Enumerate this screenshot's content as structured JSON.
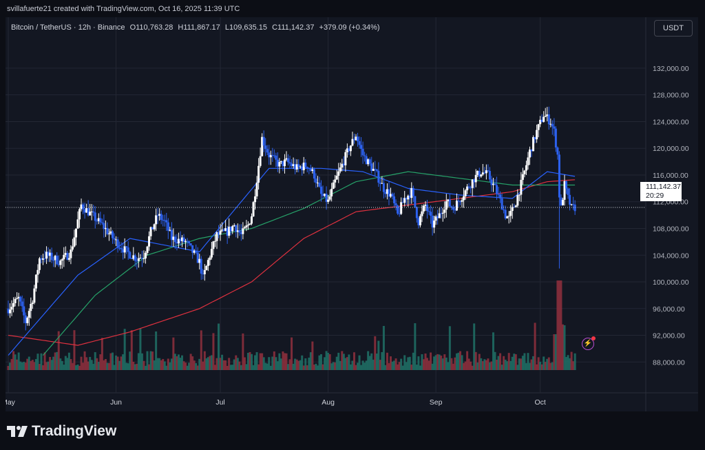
{
  "credit": "svillafuerte21 created with TradingView.com, Oct 16, 2025 11:39 UTC",
  "header": {
    "symbol": "Bitcoin / TetherUS · 12h · Binance",
    "open": "O110,763.28",
    "high": "H111,867.17",
    "low": "L109,635.15",
    "close": "C111,142.37",
    "change": "+379.09 (+0.34%)"
  },
  "currency_label": "USDT",
  "price_tag": {
    "price": "111,142.37",
    "countdown": "20:29"
  },
  "footer": {
    "brand": "TradingView"
  },
  "icons": {
    "logo": "tradingview-logo-icon",
    "alert": "lightning-alert-icon"
  },
  "colors": {
    "background": "#131722",
    "grid": "#232734",
    "candle": "#ffffff",
    "candle_alt": "#2d62f0",
    "ma_fast": "#2962ff",
    "ma_mid": "#26a269",
    "ma_slow": "#e0313f",
    "volume_up": "#1f6b63",
    "volume_down": "#8a2f3c"
  },
  "chart_data": {
    "type": "candlestick",
    "title": "Bitcoin / TetherUS · 12h · Binance",
    "x_tick_labels": [
      "May",
      "Jun",
      "Jul",
      "Aug",
      "Sep",
      "Oct"
    ],
    "x_ticks_days": [
      0,
      31,
      61,
      92,
      123,
      153
    ],
    "y_tick_labels": [
      "132,000.00",
      "128,000.00",
      "124,000.00",
      "120,000.00",
      "116,000.00",
      "112,000.00",
      "108,000.00",
      "104,000.00",
      "100,000.00",
      "96,000.00",
      "92,000.00",
      "88,000.00"
    ],
    "y_ticks": [
      132000,
      128000,
      124000,
      120000,
      116000,
      112000,
      108000,
      104000,
      100000,
      96000,
      92000,
      88000
    ],
    "ylim": [
      87000,
      135500
    ],
    "last_price": 111142.37,
    "price_anchors": [
      [
        0,
        96000
      ],
      [
        3,
        97500
      ],
      [
        5,
        94000
      ],
      [
        7,
        97500
      ],
      [
        9,
        103500
      ],
      [
        11,
        104000
      ],
      [
        15,
        103000
      ],
      [
        18,
        104500
      ],
      [
        21,
        111500
      ],
      [
        24,
        110000
      ],
      [
        27,
        108500
      ],
      [
        31,
        106000
      ],
      [
        34,
        104500
      ],
      [
        37,
        103500
      ],
      [
        39,
        104000
      ],
      [
        41,
        107500
      ],
      [
        43,
        110000
      ],
      [
        45,
        109000
      ],
      [
        47,
        106500
      ],
      [
        51,
        106000
      ],
      [
        53,
        104500
      ],
      [
        55,
        103000
      ],
      [
        56,
        100500
      ],
      [
        58,
        104000
      ],
      [
        60,
        107000
      ],
      [
        63,
        107500
      ],
      [
        65,
        108500
      ],
      [
        67,
        107000
      ],
      [
        69,
        108500
      ],
      [
        70,
        110000
      ],
      [
        71,
        113500
      ],
      [
        72,
        117500
      ],
      [
        73,
        121500
      ],
      [
        75,
        119000
      ],
      [
        78,
        117500
      ],
      [
        80,
        118000
      ],
      [
        83,
        117000
      ],
      [
        86,
        117500
      ],
      [
        88,
        116000
      ],
      [
        90,
        113000
      ],
      [
        92,
        112000
      ],
      [
        94,
        115000
      ],
      [
        96,
        117500
      ],
      [
        98,
        120000
      ],
      [
        100,
        122000
      ],
      [
        102,
        119000
      ],
      [
        104,
        117500
      ],
      [
        106,
        116000
      ],
      [
        108,
        114000
      ],
      [
        110,
        113000
      ],
      [
        112,
        110000
      ],
      [
        114,
        112500
      ],
      [
        116,
        113500
      ],
      [
        118,
        109000
      ],
      [
        120,
        111500
      ],
      [
        122,
        108500
      ],
      [
        124,
        110000
      ],
      [
        126,
        112000
      ],
      [
        128,
        111000
      ],
      [
        130,
        112500
      ],
      [
        132,
        114000
      ],
      [
        134,
        115500
      ],
      [
        136,
        116500
      ],
      [
        138,
        116000
      ],
      [
        140,
        114000
      ],
      [
        142,
        111500
      ],
      [
        143,
        110000
      ],
      [
        144,
        109500
      ],
      [
        146,
        112000
      ],
      [
        148,
        115500
      ],
      [
        150,
        119500
      ],
      [
        152,
        122500
      ],
      [
        154,
        125000
      ],
      [
        156,
        124000
      ],
      [
        157,
        122500
      ],
      [
        158,
        119000
      ],
      [
        158.5,
        113000
      ],
      [
        159,
        111000
      ],
      [
        160,
        114500
      ],
      [
        161,
        112500
      ],
      [
        162,
        111000
      ],
      [
        163,
        111142
      ]
    ],
    "crash_wick": {
      "day": 158.5,
      "low": 102000
    },
    "peak_wick": {
      "day": 155,
      "high": 126200
    },
    "ma_fast_anchors": [
      [
        0,
        89000
      ],
      [
        20,
        101000
      ],
      [
        35,
        106500
      ],
      [
        55,
        104500
      ],
      [
        75,
        117000
      ],
      [
        90,
        117000
      ],
      [
        102,
        116500
      ],
      [
        115,
        114000
      ],
      [
        130,
        113000
      ],
      [
        145,
        112500
      ],
      [
        155,
        116500
      ],
      [
        163,
        115800
      ]
    ],
    "ma_mid_anchors": [
      [
        10,
        89000
      ],
      [
        25,
        98000
      ],
      [
        40,
        104000
      ],
      [
        55,
        106500
      ],
      [
        70,
        108000
      ],
      [
        85,
        111000
      ],
      [
        100,
        115000
      ],
      [
        115,
        116500
      ],
      [
        130,
        115500
      ],
      [
        145,
        114500
      ],
      [
        155,
        114500
      ],
      [
        163,
        114500
      ]
    ],
    "ma_slow_anchors": [
      [
        0,
        92000
      ],
      [
        20,
        90500
      ],
      [
        35,
        92500
      ],
      [
        55,
        96000
      ],
      [
        70,
        100000
      ],
      [
        85,
        106500
      ],
      [
        100,
        110500
      ],
      [
        115,
        111500
      ],
      [
        130,
        112500
      ],
      [
        145,
        113500
      ],
      [
        155,
        115000
      ],
      [
        163,
        115300
      ]
    ],
    "volume_note": "volume bars along bottom, spike near day 158"
  }
}
